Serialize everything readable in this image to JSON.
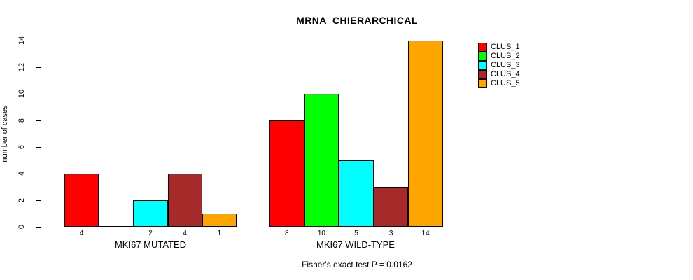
{
  "chart_data": {
    "type": "bar",
    "title": "MRNA_CHIERARCHICAL",
    "ylabel": "number of cases",
    "xlabel": "",
    "ylim": [
      0,
      14
    ],
    "yticks": [
      0,
      2,
      4,
      6,
      8,
      10,
      12,
      14
    ],
    "grid": false,
    "legend_position": "right",
    "categories": [
      "MKI67 MUTATED",
      "MKI67 WILD-TYPE"
    ],
    "series": [
      {
        "name": "CLUS_1",
        "color": "#FF0000",
        "values": [
          4,
          8
        ]
      },
      {
        "name": "CLUS_2",
        "color": "#00FF00",
        "values": [
          0,
          10
        ]
      },
      {
        "name": "CLUS_3",
        "color": "#00FFFF",
        "values": [
          2,
          5
        ]
      },
      {
        "name": "CLUS_4",
        "color": "#A52A2A",
        "values": [
          4,
          3
        ]
      },
      {
        "name": "CLUS_5",
        "color": "#FFA500",
        "values": [
          1,
          14
        ]
      }
    ],
    "bar_value_labels": [
      [
        "4",
        "",
        "2",
        "4",
        "1"
      ],
      [
        "8",
        "10",
        "5",
        "3",
        "14"
      ]
    ],
    "annotation": "Fisher's exact test P = 0.0162"
  }
}
